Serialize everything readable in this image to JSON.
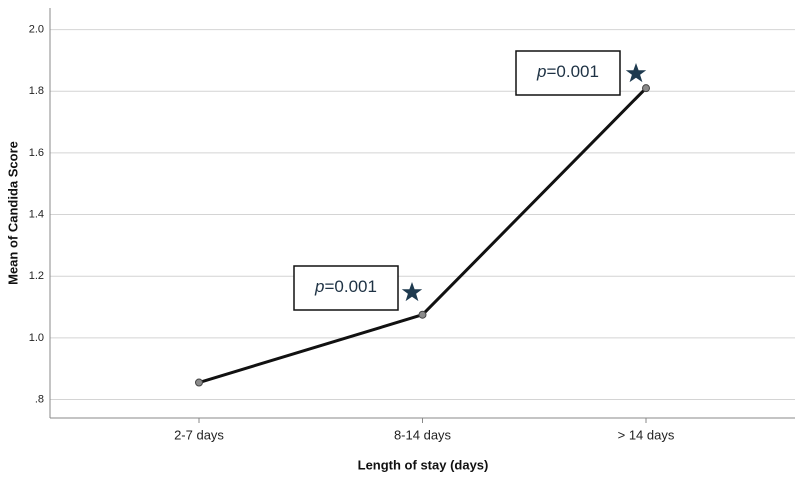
{
  "chart_data": {
    "type": "line",
    "x_label": "Length of stay (days)",
    "y_label": "Mean of Candida Score",
    "categories": [
      "2-7 days",
      "8-14 days",
      "> 14 days"
    ],
    "values": [
      0.855,
      1.075,
      1.81
    ],
    "color": "#111111",
    "marker_color": "#8a8a8a",
    "ylim": [
      0.74,
      2.07
    ],
    "yticks": [
      {
        "value": 0.8,
        "label": ".8"
      },
      {
        "value": 1,
        "label": "1.0"
      },
      {
        "value": 1.2,
        "label": "1.2"
      },
      {
        "value": 1.4,
        "label": "1.4"
      },
      {
        "value": 1.6,
        "label": "1.6"
      },
      {
        "value": 1.8,
        "label": "1.8"
      },
      {
        "value": 2,
        "label": "2.0"
      }
    ],
    "grid": true,
    "annotations": [
      "p=0.001",
      "p=0.001"
    ]
  }
}
